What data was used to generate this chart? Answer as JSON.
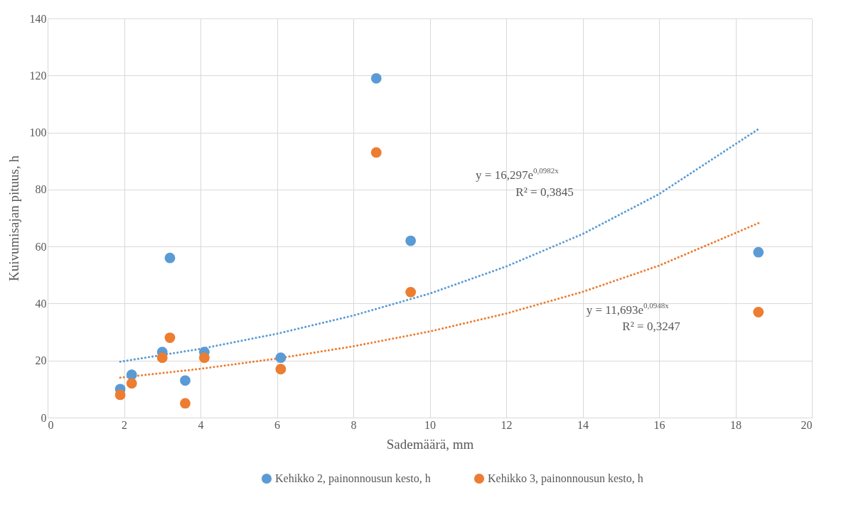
{
  "chart_data": {
    "type": "scatter",
    "xlabel": "Sademäärä, mm",
    "ylabel": "Kuivumisajan pituus, h",
    "x": [
      1.9,
      2.2,
      3.0,
      3.2,
      3.6,
      4.1,
      6.1,
      8.6,
      9.5,
      18.6
    ],
    "series": [
      {
        "name": "Kehikko 2, painonnousun kesto, h",
        "color": "#5b9bd5",
        "marker": "circle",
        "values": [
          10,
          15,
          23,
          56,
          13,
          23,
          21,
          119,
          62,
          58
        ]
      },
      {
        "name": "Kehikko 3, painonnousun kesto, h",
        "color": "#ed7d31",
        "marker": "circle",
        "values": [
          8,
          12,
          21,
          28,
          5,
          21,
          17,
          93,
          44,
          37
        ]
      },
      {
        "type": "line",
        "color": "#5b9bd5",
        "line_style": "dotted",
        "x": [
          1.9,
          4,
          6,
          8,
          10,
          12,
          14,
          16,
          18.6
        ],
        "values": [
          19.6,
          24.1,
          29.4,
          35.8,
          43.5,
          53.0,
          64.4,
          78.4,
          101.2
        ]
      },
      {
        "type": "line",
        "color": "#ed7d31",
        "line_style": "dotted",
        "x": [
          1.9,
          4,
          6,
          8,
          10,
          12,
          14,
          16,
          18.6
        ],
        "values": [
          14.0,
          17.1,
          20.7,
          25.0,
          30.2,
          36.5,
          44.1,
          53.3,
          68.2
        ]
      }
    ],
    "annotations": [
      "y = 16,297e$^{0,0982x}$",
      "R² = 0,3845",
      "y = 11,693e$^{0,0948x}$",
      "R² = 0,3247"
    ],
    "xlim": [
      0,
      20
    ],
    "xticks": [
      0,
      2,
      4,
      6,
      8,
      10,
      12,
      14,
      16,
      18,
      20
    ],
    "ylim": [
      0,
      140
    ],
    "yticks": [
      0,
      20,
      40,
      60,
      80,
      100,
      120,
      140
    ],
    "grid": true,
    "legend": "bottom"
  }
}
